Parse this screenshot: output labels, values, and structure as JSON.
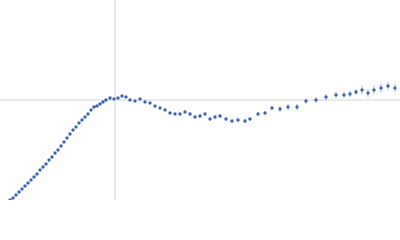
{
  "chart_data": {
    "type": "scatter",
    "xlim": [
      -115,
      285
    ],
    "ylim": [
      -100,
      100
    ],
    "color": "#3a62b0",
    "zero_lines": true,
    "x": [
      -105,
      -102,
      -99,
      -96,
      -93,
      -90,
      -87,
      -84,
      -81,
      -78,
      -75,
      -72,
      -69,
      -66,
      -63,
      -60,
      -57,
      -54,
      -51,
      -48,
      -45,
      -42,
      -39,
      -36,
      -33,
      -30,
      -27,
      -24,
      -21,
      -18,
      -15,
      -12,
      -9,
      -5,
      -1,
      3,
      7,
      11,
      15,
      20,
      25,
      30,
      35,
      40,
      45,
      50,
      55,
      60,
      65,
      70,
      75,
      80,
      85,
      90,
      95,
      100,
      105,
      111,
      117,
      123,
      130,
      135,
      143,
      150,
      157,
      165,
      173,
      182,
      191,
      201,
      211,
      221,
      229,
      235,
      241,
      247,
      253,
      259,
      266,
      273,
      280
    ],
    "values": [
      -100,
      -98,
      -95,
      -92,
      -89,
      -86,
      -83,
      -80,
      -77,
      -74,
      -70,
      -67,
      -64,
      -60,
      -57,
      -53,
      -50,
      -46,
      -42,
      -38,
      -34,
      -30,
      -27,
      -23,
      -20,
      -17,
      -14,
      -10,
      -7,
      -6,
      -4,
      -2,
      0,
      2,
      1,
      2,
      4,
      3,
      0,
      -1,
      1,
      -2,
      -3,
      -6,
      -8,
      -10,
      -13,
      -14,
      -14,
      -12,
      -14,
      -17,
      -16,
      -14,
      -19,
      -17,
      -16,
      -19,
      -21,
      -20,
      -21,
      -19,
      -14,
      -13,
      -8,
      -9,
      -7,
      -7,
      -1,
      0,
      3,
      5,
      5,
      6,
      8,
      10,
      7,
      10,
      12,
      14,
      12
    ],
    "errors": [
      1,
      1,
      1,
      1,
      1,
      1,
      1,
      1,
      1,
      1,
      1,
      1,
      1,
      1,
      1,
      1,
      1,
      1,
      1,
      1,
      1,
      1,
      1,
      1,
      1,
      1,
      1,
      1,
      1,
      1,
      1,
      1,
      1,
      1,
      1,
      1,
      1,
      1,
      1,
      1,
      1,
      1,
      1,
      1,
      1,
      1,
      1,
      1,
      1,
      1,
      2,
      2,
      2,
      2,
      2,
      2,
      2,
      2,
      2,
      2,
      2,
      2,
      2,
      2,
      2,
      3,
      3,
      3,
      3,
      3,
      3,
      3,
      3,
      3,
      3,
      4,
      4,
      4,
      4,
      4,
      4
    ]
  }
}
